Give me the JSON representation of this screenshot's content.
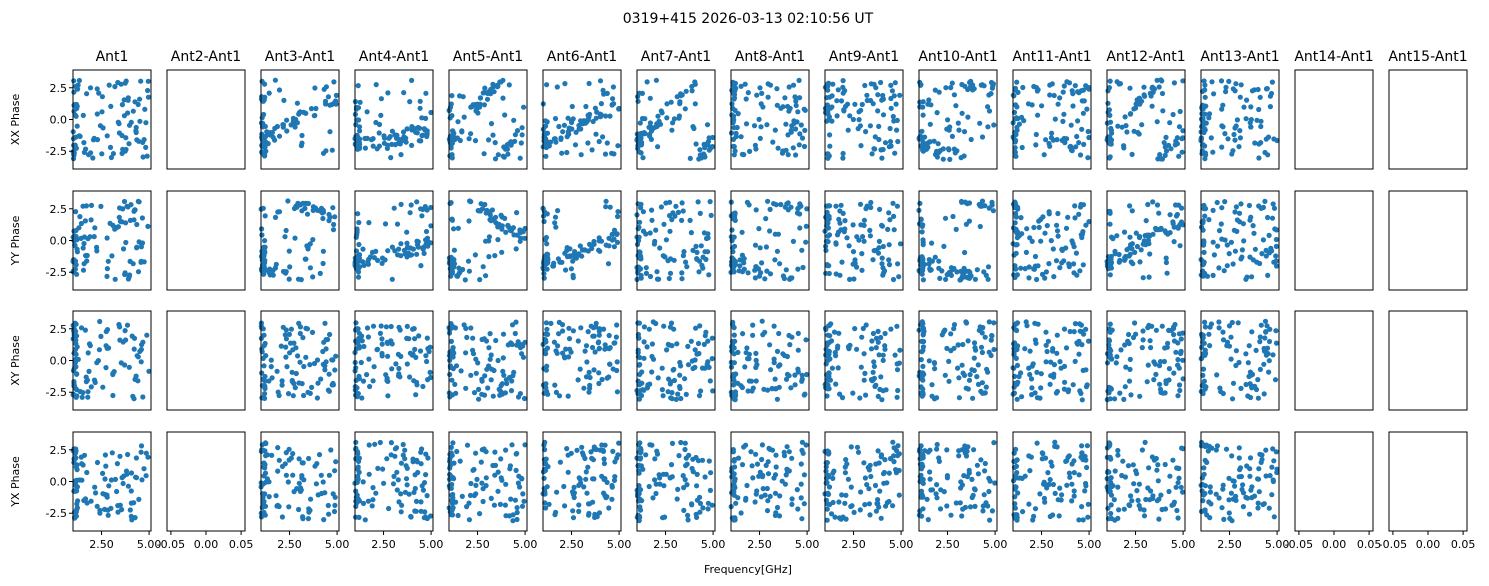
{
  "chart_data": {
    "type": "scatter",
    "title": "0319+415 2026-03-13 02:10:56 UT",
    "xlabel": "Frequency[GHz]",
    "columns": [
      "Ant1",
      "Ant2-Ant1",
      "Ant3-Ant1",
      "Ant4-Ant1",
      "Ant5-Ant1",
      "Ant6-Ant1",
      "Ant7-Ant1",
      "Ant8-Ant1",
      "Ant9-Ant1",
      "Ant10-Ant1",
      "Ant11-Ant1",
      "Ant12-Ant1",
      "Ant13-Ant1",
      "Ant14-Ant1",
      "Ant15-Ant1"
    ],
    "rows": [
      "XX Phase",
      "YY Phase",
      "XY Phase",
      "YX Phase"
    ],
    "empty_columns": [
      1,
      13,
      14
    ],
    "xlim": [
      1.0,
      5.1
    ],
    "ylim": [
      -3.9,
      3.9
    ],
    "xticks": [
      "2.50",
      "5.00"
    ],
    "yticks": [
      "2.5",
      "0.0",
      "-2.5"
    ],
    "empty_xticks": [
      "-0.05",
      "0.00",
      "0.05"
    ],
    "marker_color": "#1f77b4",
    "points_per_panel": 100,
    "trend_slopes": {
      "0": [
        0,
        0,
        0.9,
        0.2,
        1.9,
        0.8,
        1.6,
        0,
        0,
        -0.6,
        0,
        1.8,
        0,
        0,
        0
      ],
      "1": [
        0,
        0,
        -0.8,
        0.4,
        -1.1,
        0.5,
        0,
        -0.5,
        0,
        -0.4,
        0,
        0.9,
        0,
        0,
        0
      ]
    }
  }
}
